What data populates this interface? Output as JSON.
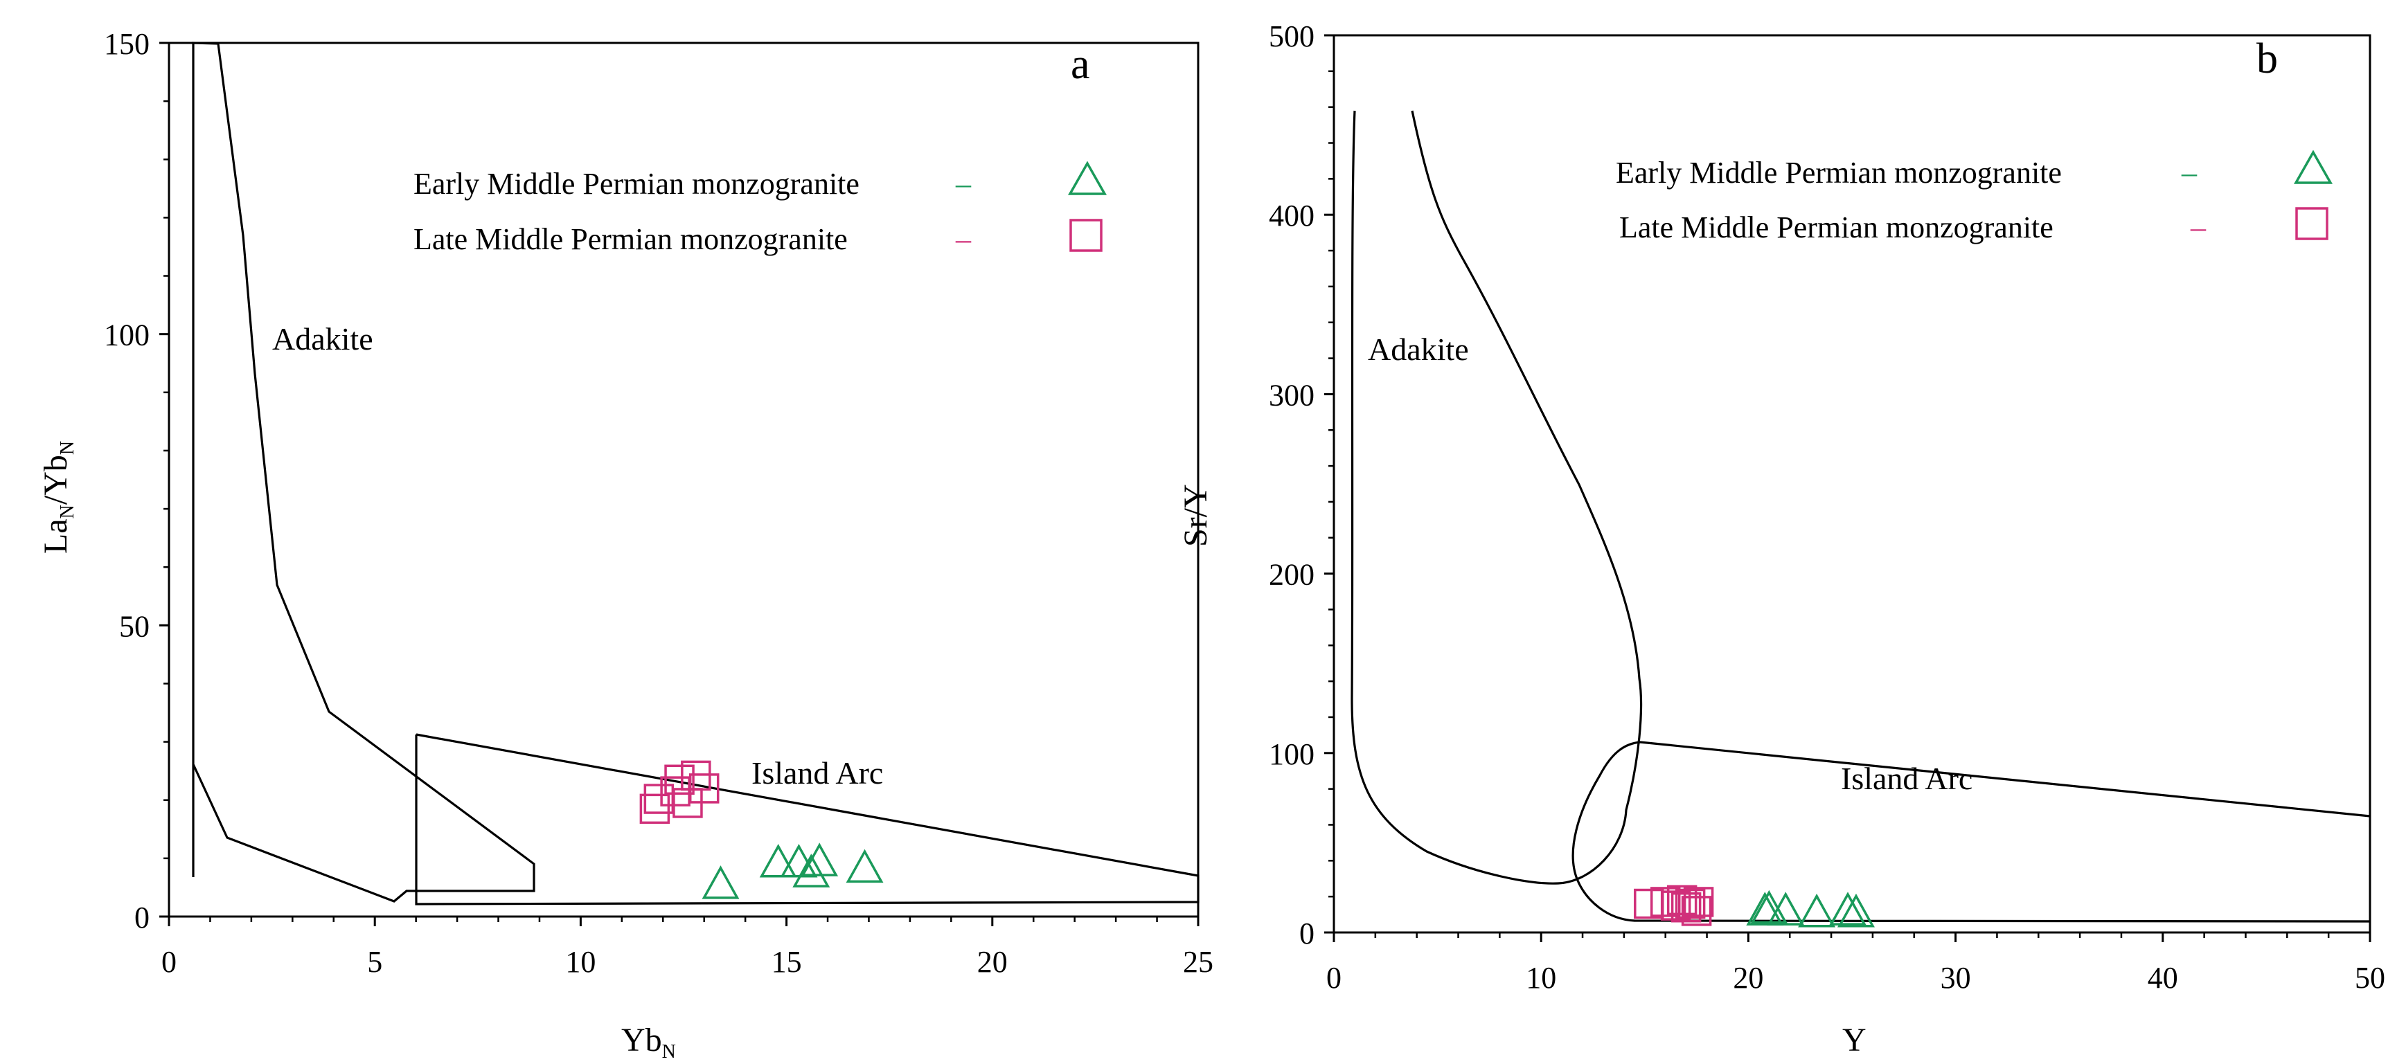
{
  "colors": {
    "early": "#1a9a5a",
    "late": "#d0307a",
    "outline": "#000000"
  },
  "legend": {
    "early_label": "Early Middle Permian monzogranite",
    "late_label": "Late Middle Permian monzogranite",
    "dash": "–"
  },
  "chart_data": [
    {
      "type": "scatter",
      "panel": "a",
      "xlim": [
        0,
        25
      ],
      "ylim": [
        0,
        150
      ],
      "xticks": [
        "0",
        "5",
        "10",
        "15",
        "20",
        "25"
      ],
      "yticks": [
        "0",
        "50",
        "100",
        "150"
      ],
      "xlabel": {
        "main": "Yb",
        "sub": "N"
      },
      "ylabel": {
        "p1": "La",
        "s1": "N",
        "p2": "/Yb",
        "s2": "N"
      },
      "field_labels": [
        "Adakite",
        "Island Arc"
      ],
      "series": [
        {
          "name": "Early Middle Permian monzogranite",
          "marker": "triangle",
          "points": [
            [
              13.4,
              5.5
            ],
            [
              14.8,
              9.2
            ],
            [
              15.3,
              9.2
            ],
            [
              15.6,
              7.5
            ],
            [
              15.8,
              9.4
            ],
            [
              16.9,
              8.3
            ]
          ]
        },
        {
          "name": "Late Middle Permian monzogranite",
          "marker": "square",
          "points": [
            [
              11.8,
              18.5
            ],
            [
              11.9,
              20.2
            ],
            [
              12.3,
              21.5
            ],
            [
              12.4,
              23.5
            ],
            [
              12.6,
              19.5
            ],
            [
              12.8,
              24.2
            ],
            [
              13.0,
              22.0
            ]
          ]
        }
      ]
    },
    {
      "type": "scatter",
      "panel": "b",
      "xlim": [
        0,
        50
      ],
      "ylim": [
        0,
        500
      ],
      "xticks": [
        "0",
        "10",
        "20",
        "30",
        "40",
        "50"
      ],
      "yticks": [
        "0",
        "100",
        "200",
        "300",
        "400",
        "500"
      ],
      "xlabel": {
        "main": "Y"
      },
      "ylabel": {
        "main": "Sr/Y"
      },
      "field_labels": [
        "Adakite",
        "Island Arc"
      ],
      "series": [
        {
          "name": "Early Middle Permian monzogranite",
          "marker": "triangle",
          "points": [
            [
              20.8,
              12
            ],
            [
              21.0,
              13
            ],
            [
              21.8,
              12
            ],
            [
              23.3,
              11
            ],
            [
              24.8,
              12
            ],
            [
              25.2,
              11
            ]
          ]
        },
        {
          "name": "Late Middle Permian monzogranite",
          "marker": "square",
          "points": [
            [
              15.2,
              16
            ],
            [
              16.0,
              17
            ],
            [
              16.5,
              15
            ],
            [
              16.8,
              18
            ],
            [
              17.0,
              14
            ],
            [
              17.2,
              16
            ],
            [
              17.5,
              12
            ],
            [
              17.6,
              17
            ]
          ]
        }
      ]
    }
  ]
}
